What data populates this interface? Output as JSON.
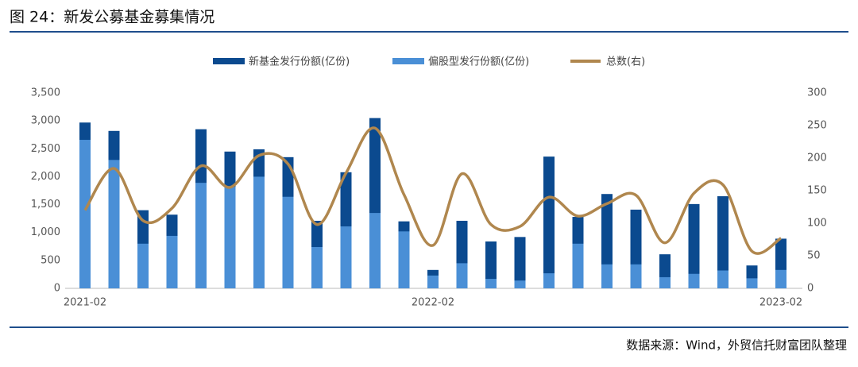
{
  "chart_data": {
    "type": "bar",
    "title": "图 24：新发公募基金募集情况",
    "source": "数据来源：Wind，外贸信托财富团队整理",
    "categories": [
      "2021-02",
      null,
      null,
      null,
      null,
      null,
      null,
      null,
      null,
      null,
      null,
      null,
      "2022-02",
      null,
      null,
      null,
      null,
      null,
      null,
      null,
      null,
      null,
      null,
      null,
      "2023-02"
    ],
    "series": [
      {
        "name": "新基金发行份额(亿份)",
        "color": "#0b4a8f",
        "type": "bar",
        "values": [
          2970,
          2820,
          1400,
          1320,
          2850,
          2450,
          2490,
          2350,
          1210,
          2080,
          3050,
          1200,
          330,
          1210,
          840,
          920,
          2360,
          1280,
          1690,
          1410,
          610,
          1510,
          1650,
          410,
          890
        ]
      },
      {
        "name": "偏股型发行份额(亿份)",
        "color": "#4a8fd6",
        "type": "bar",
        "values": [
          2660,
          2300,
          800,
          940,
          1890,
          1820,
          2000,
          1640,
          740,
          1110,
          1350,
          1020,
          230,
          450,
          170,
          140,
          270,
          800,
          430,
          430,
          200,
          260,
          320,
          180,
          330
        ]
      },
      {
        "name": "总数(右)",
        "color": "#b0874e",
        "type": "line",
        "axis": "y2",
        "values": [
          120,
          184,
          104,
          123,
          188,
          155,
          204,
          191,
          98,
          177,
          246,
          144,
          66,
          176,
          98,
          95,
          140,
          111,
          130,
          143,
          70,
          146,
          159,
          57,
          77
        ]
      }
    ],
    "ylim": [
      0,
      3500
    ],
    "yticks": [
      0,
      500,
      {
        "value": 1000,
        "label": "1,000"
      },
      {
        "value": 1500,
        "label": "1,500"
      },
      {
        "value": 2000,
        "label": "2,000"
      },
      {
        "value": 2500,
        "label": "2,500"
      },
      {
        "value": 3000,
        "label": "3,000"
      },
      {
        "value": 3500,
        "label": "3,500"
      }
    ],
    "y2lim": [
      0,
      300
    ],
    "y2ticks": [
      0,
      50,
      100,
      150,
      200,
      250,
      300
    ],
    "legend": "top",
    "grid": false
  }
}
